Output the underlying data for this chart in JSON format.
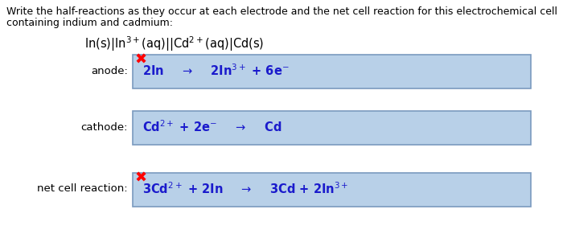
{
  "title_line1": "Write the half-reactions as they occur at each electrode and the net cell reaction for this electrochemical cell",
  "title_line2": "containing indium and cadmium:",
  "box_color": "#b8d0e8",
  "box_edge_color": "#7a9abf",
  "bg_color": "#ffffff",
  "text_color": "#000000",
  "reaction_color": "#1a1acc",
  "title_fontsize": 9.0,
  "label_fontsize": 9.5,
  "reaction_fontsize": 10.5,
  "cell_notation_fontsize": 10.5,
  "anode_label": "anode:",
  "cathode_label": "cathode:",
  "net_label": "net cell reaction:"
}
